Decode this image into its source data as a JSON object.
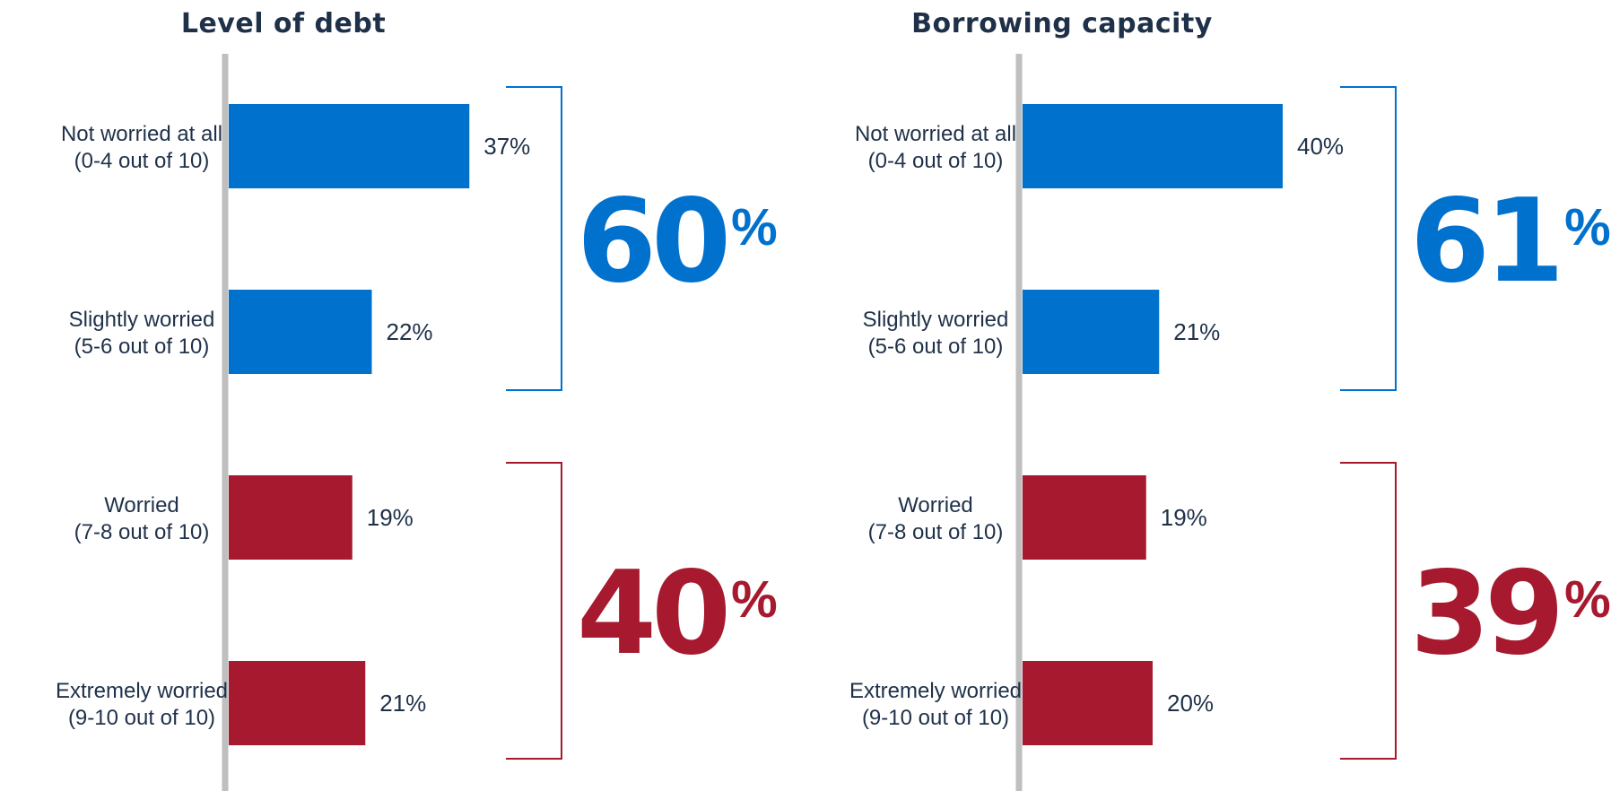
{
  "chart_data": [
    {
      "type": "bar",
      "orientation": "horizontal",
      "title": "Level of debt",
      "categories": [
        {
          "line1": "Not worried at all",
          "line2": "(0-4 out of 10)"
        },
        {
          "line1": "Slightly worried",
          "line2": "(5-6 out of 10)"
        },
        {
          "line1": "Worried",
          "line2": "(7-8 out of 10)"
        },
        {
          "line1": "Extremely worried",
          "line2": "(9-10 out of 10)"
        }
      ],
      "values": [
        37,
        22,
        19,
        21
      ],
      "value_labels": [
        "37%",
        "22%",
        "19%",
        "21%"
      ],
      "bar_colors": [
        "#0171ce",
        "#0171ce",
        "#a6192e",
        "#a6192e"
      ],
      "groups": [
        {
          "number": "60",
          "suffix": "%",
          "color": "#0171ce",
          "covers": [
            0,
            1
          ]
        },
        {
          "number": "40",
          "suffix": "%",
          "color": "#a6192e",
          "covers": [
            2,
            3
          ]
        }
      ],
      "xlim": [
        0,
        40
      ],
      "grid": false
    },
    {
      "type": "bar",
      "orientation": "horizontal",
      "title": "Borrowing capacity",
      "categories": [
        {
          "line1": "Not worried at all",
          "line2": "(0-4 out of 10)"
        },
        {
          "line1": "Slightly worried",
          "line2": "(5-6 out of 10)"
        },
        {
          "line1": "Worried",
          "line2": "(7-8 out of 10)"
        },
        {
          "line1": "Extremely worried",
          "line2": "(9-10 out of 10)"
        }
      ],
      "values": [
        40,
        21,
        19,
        20
      ],
      "value_labels": [
        "40%",
        "21%",
        "19%",
        "20%"
      ],
      "bar_colors": [
        "#0171ce",
        "#0171ce",
        "#a6192e",
        "#a6192e"
      ],
      "groups": [
        {
          "number": "61",
          "suffix": "%",
          "color": "#0171ce",
          "covers": [
            0,
            1
          ]
        },
        {
          "number": "39",
          "suffix": "%",
          "color": "#a6192e",
          "covers": [
            2,
            3
          ]
        }
      ],
      "xlim": [
        0,
        40
      ],
      "grid": false
    }
  ]
}
